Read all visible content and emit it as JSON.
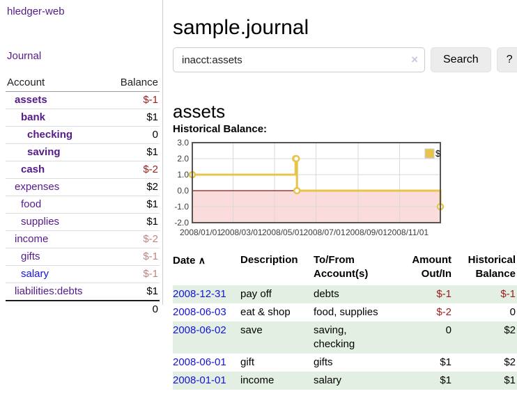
{
  "colors": {
    "link_purple": "#551A8B",
    "link_blue": "#1313dd",
    "negative_strong": "#9c1b1b",
    "negative_faded": "#c08383",
    "row_stripe_green": "#e2efe2",
    "chart_line": "#e9c44a",
    "chart_negative_fill": "#fbdcdc",
    "chart_zero_line": "#8c1515"
  },
  "app": {
    "title": "hledger-web",
    "nav_journal": "Journal"
  },
  "sidebar": {
    "headers": {
      "account": "Account",
      "balance": "Balance"
    },
    "accounts": [
      {
        "name": "assets",
        "depth": 1,
        "bold": true,
        "balance": "$-1",
        "balance_class": "neg"
      },
      {
        "name": "bank",
        "depth": 2,
        "bold": true,
        "balance": "$1",
        "balance_class": ""
      },
      {
        "name": "checking",
        "depth": 3,
        "bold": true,
        "balance": "0",
        "balance_class": ""
      },
      {
        "name": "saving",
        "depth": 3,
        "bold": true,
        "balance": "$1",
        "balance_class": ""
      },
      {
        "name": "cash",
        "depth": 2,
        "bold": true,
        "balance": "$-2",
        "balance_class": "neg"
      },
      {
        "name": "expenses",
        "depth": 1,
        "bold": false,
        "balance": "$2",
        "balance_class": ""
      },
      {
        "name": "food",
        "depth": 2,
        "bold": false,
        "balance": "$1",
        "balance_class": ""
      },
      {
        "name": "supplies",
        "depth": 2,
        "bold": false,
        "balance": "$1",
        "balance_class": ""
      },
      {
        "name": "income",
        "depth": 1,
        "bold": false,
        "balance": "$-2",
        "balance_class": "negfaded"
      },
      {
        "name": "gifts",
        "depth": 2,
        "bold": false,
        "balance": "$-1",
        "balance_class": "negfaded"
      },
      {
        "name": "salary",
        "depth": 2,
        "bold": false,
        "balance": "$-1",
        "balance_class": "negfaded",
        "link_blue": true
      },
      {
        "name": "liabilities:debts",
        "depth": 1,
        "bold": false,
        "balance": "$1",
        "balance_class": ""
      }
    ],
    "total_balance": "0"
  },
  "header": {
    "title": "sample.journal"
  },
  "search": {
    "value": "inacct:assets",
    "clear_icon": "×",
    "button_label": "Search",
    "help_label": "?"
  },
  "account_page": {
    "title": "assets",
    "chart_label": "Historical Balance:"
  },
  "chart_data": {
    "type": "line",
    "title": "Historical Balance:",
    "steps": true,
    "grid": true,
    "legend_position": "top-right",
    "ylim": [
      -2,
      3
    ],
    "xlim_days": [
      0,
      365
    ],
    "y_ticks": [
      {
        "label": "3.0",
        "value": 3
      },
      {
        "label": "2.0",
        "value": 2
      },
      {
        "label": "1.0",
        "value": 1
      },
      {
        "label": "0.0",
        "value": 0
      },
      {
        "label": "-1.0",
        "value": -1
      },
      {
        "label": "-2.0",
        "value": -2
      }
    ],
    "x_ticks": [
      {
        "label": "2008/01/01",
        "day": 0
      },
      {
        "label": "2008/03/01",
        "day": 60
      },
      {
        "label": "2008/05/01",
        "day": 121
      },
      {
        "label": "2008/07/01",
        "day": 182
      },
      {
        "label": "2008/09/01",
        "day": 244
      },
      {
        "label": "2008/11/01",
        "day": 305
      }
    ],
    "series": [
      {
        "name": "$",
        "color": "#e9c44a",
        "points": [
          {
            "date": "2008-01-01",
            "day": 0,
            "value": 1
          },
          {
            "date": "2008-06-01",
            "day": 152,
            "value": 2
          },
          {
            "date": "2008-06-02",
            "day": 153,
            "value": 2
          },
          {
            "date": "2008-06-03",
            "day": 154,
            "value": 0
          },
          {
            "date": "2008-12-31",
            "day": 365,
            "value": -1
          }
        ]
      }
    ]
  },
  "register_table": {
    "headers": {
      "date": "Date",
      "sort_icon": "∧",
      "description": "Description",
      "tofrom": "To/From Account(s)",
      "amount": "Amount Out/In",
      "balance": "Historical Balance"
    },
    "rows": [
      {
        "date": "2008-12-31",
        "description": "pay off",
        "accounts": "debts",
        "amount": "$-1",
        "amount_class": "neg",
        "balance": "$-1",
        "balance_class": "neg",
        "shaded": true
      },
      {
        "date": "2008-06-03",
        "description": "eat & shop",
        "accounts": "food, supplies",
        "amount": "$-2",
        "amount_class": "neg",
        "balance": "0",
        "balance_class": "",
        "shaded": false
      },
      {
        "date": "2008-06-02",
        "description": "save",
        "accounts": "saving,\nchecking",
        "amount": "0",
        "amount_class": "",
        "balance": "$2",
        "balance_class": "",
        "shaded": true
      },
      {
        "date": "2008-06-01",
        "description": "gift",
        "accounts": "gifts",
        "amount": "$1",
        "amount_class": "",
        "balance": "$2",
        "balance_class": "",
        "shaded": false
      },
      {
        "date": "2008-01-01",
        "description": "income",
        "accounts": "salary",
        "amount": "$1",
        "amount_class": "",
        "balance": "$1",
        "balance_class": "",
        "shaded": true
      }
    ]
  }
}
